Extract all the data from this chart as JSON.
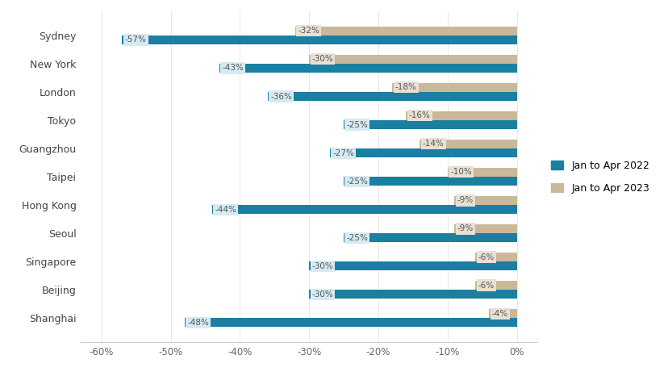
{
  "cities": [
    "Sydney",
    "New York",
    "London",
    "Tokyo",
    "Guangzhou",
    "Taipei",
    "Hong Kong",
    "Seoul",
    "Singapore",
    "Beijing",
    "Shanghai"
  ],
  "val_2022": [
    -57,
    -43,
    -36,
    -25,
    -27,
    -25,
    -44,
    -25,
    -30,
    -30,
    -48
  ],
  "val_2023": [
    -32,
    -30,
    -18,
    -16,
    -14,
    -10,
    -9,
    -9,
    -6,
    -6,
    -4
  ],
  "color_2022": "#1a7fa0",
  "color_2023": "#c9b99a",
  "label_2022": "Jan to Apr 2022",
  "label_2023": "Jan to Apr 2023",
  "label_bg_2022": "#d6eaf2",
  "label_bg_2023": "#e8e0d5",
  "xlim": [
    -63,
    3
  ],
  "xticks": [
    -60,
    -50,
    -40,
    -30,
    -20,
    -10,
    0
  ],
  "xticklabels": [
    "-60%",
    "-50%",
    "-40%",
    "-30%",
    "-20%",
    "-10%",
    "0%"
  ],
  "bar_height": 0.32,
  "figsize": [
    8.33,
    4.66
  ],
  "dpi": 100,
  "background_color": "#ffffff",
  "label_fontsize": 7.5,
  "tick_fontsize": 8.5,
  "city_fontsize": 9,
  "legend_fontsize": 9
}
